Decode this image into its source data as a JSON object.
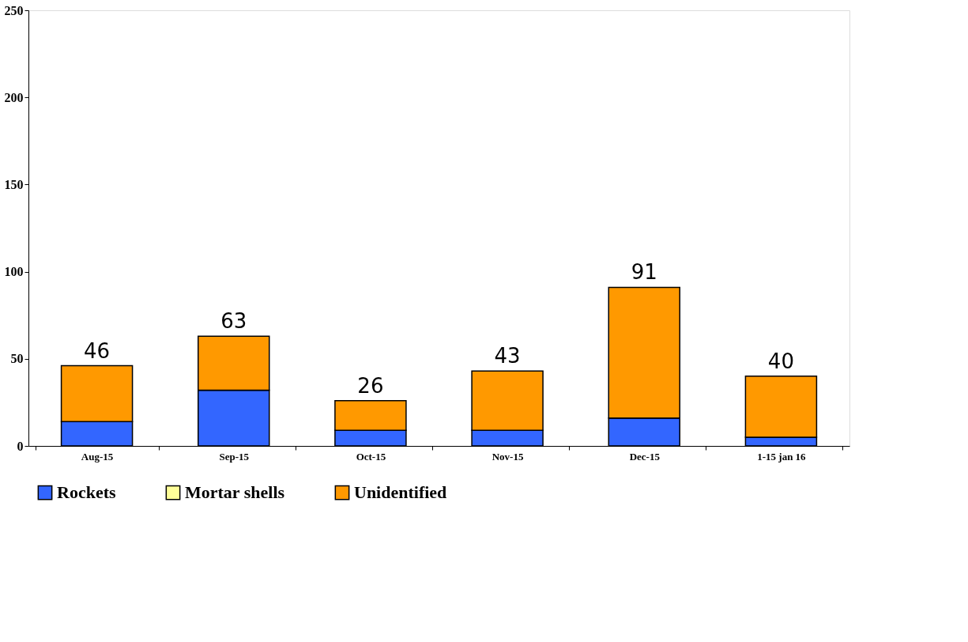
{
  "chart_data": {
    "type": "bar",
    "stacked": true,
    "categories": [
      "Aug-15",
      "Sep-15",
      "Oct-15",
      "Nov-15",
      "Dec-15",
      "1-15 jan 16"
    ],
    "series": [
      {
        "name": "Rockets",
        "color": "#3366ff",
        "values": [
          14,
          32,
          9,
          9,
          16,
          5
        ]
      },
      {
        "name": "Mortar shells",
        "color": "#ffff99",
        "values": [
          0,
          0,
          0,
          0,
          0,
          0
        ]
      },
      {
        "name": "Unidentified",
        "color": "#ff9900",
        "values": [
          32,
          31,
          17,
          34,
          75,
          35
        ]
      }
    ],
    "totals": [
      "46",
      "63",
      "26",
      "43",
      "91",
      "40"
    ],
    "ylim": [
      0,
      250
    ],
    "yticks": [
      0,
      50,
      100,
      150,
      200,
      250
    ],
    "grid": false,
    "legend": "bottom"
  }
}
